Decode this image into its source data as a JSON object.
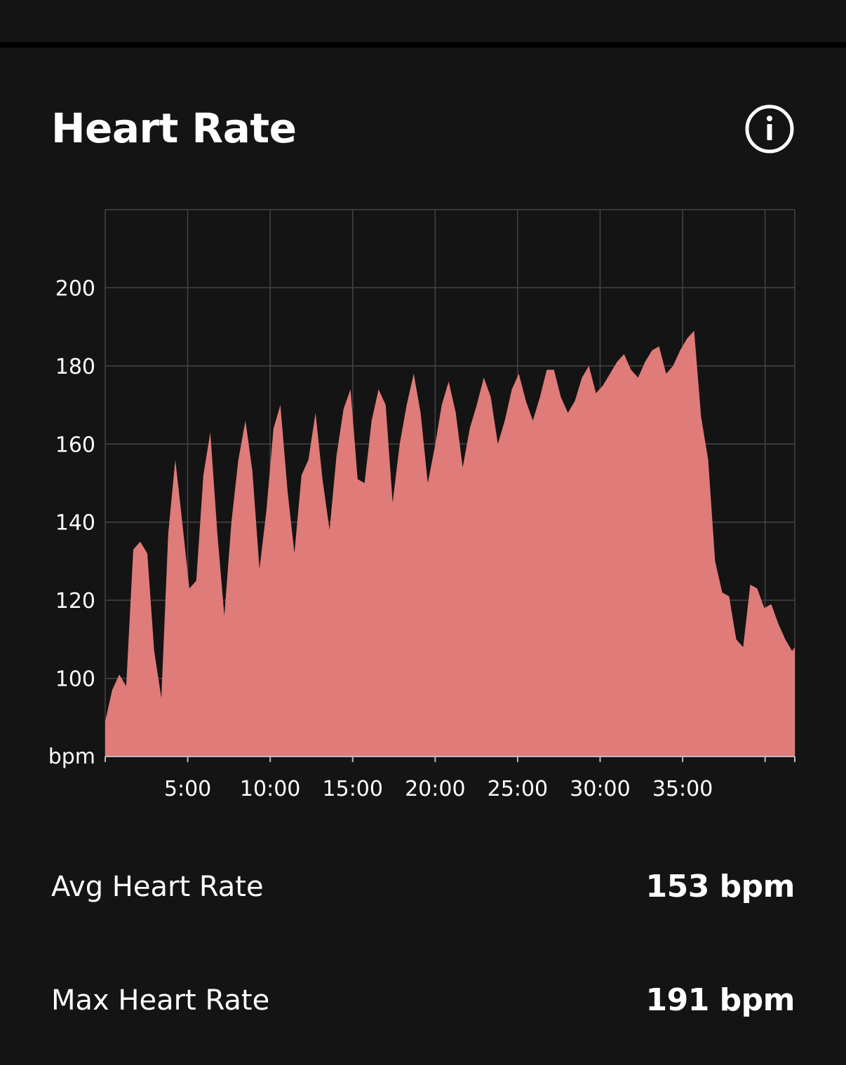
{
  "header": {
    "title": "Heart Rate",
    "info_icon": "info-icon"
  },
  "chart_data": {
    "type": "area",
    "title": "",
    "xlabel": "",
    "ylabel": "bpm",
    "color": "#df7b79",
    "grid": true,
    "xlim": [
      0,
      41.8
    ],
    "ylim": [
      80,
      220
    ],
    "y_ticks": [
      100,
      120,
      140,
      160,
      180,
      200
    ],
    "x_ticks": [
      5,
      10,
      15,
      20,
      25,
      30,
      35
    ],
    "x_tick_labels": [
      "5:00",
      "10:00",
      "15:00",
      "20:00",
      "25:00",
      "30:00",
      "35:00"
    ],
    "x_gridlines": [
      5,
      10,
      15,
      20,
      25,
      30,
      35,
      40
    ],
    "x": [
      0,
      0.42,
      0.85,
      1.27,
      1.7,
      2.12,
      2.55,
      2.97,
      3.4,
      3.82,
      4.25,
      4.67,
      5.1,
      5.52,
      5.95,
      6.37,
      6.8,
      7.22,
      7.65,
      8.07,
      8.5,
      8.92,
      9.35,
      9.77,
      10.2,
      10.62,
      11.05,
      11.47,
      11.9,
      12.32,
      12.75,
      13.17,
      13.6,
      14.02,
      14.45,
      14.87,
      15.3,
      15.72,
      16.15,
      16.57,
      17.0,
      17.42,
      17.85,
      18.27,
      18.7,
      19.12,
      19.55,
      19.97,
      20.4,
      20.82,
      21.25,
      21.67,
      22.1,
      22.52,
      22.95,
      23.37,
      23.8,
      24.22,
      24.65,
      25.07,
      25.5,
      25.92,
      26.35,
      26.77,
      27.2,
      27.62,
      28.05,
      28.47,
      28.9,
      29.32,
      29.75,
      30.17,
      30.6,
      31.02,
      31.45,
      31.87,
      32.3,
      32.72,
      33.15,
      33.57,
      34.0,
      34.42,
      34.85,
      35.27,
      35.7,
      36.12,
      36.55,
      36.97,
      37.4,
      37.82,
      38.25,
      38.67,
      39.1,
      39.52,
      39.95,
      40.37,
      40.8,
      41.22,
      41.64,
      41.8
    ],
    "y": [
      89,
      97,
      101,
      98,
      133,
      135,
      132,
      107,
      95,
      137,
      156,
      140,
      123,
      125,
      152,
      163,
      137,
      116,
      140,
      156,
      166,
      153,
      128,
      143,
      164,
      170,
      148,
      132,
      152,
      156,
      168,
      151,
      138,
      157,
      169,
      174,
      151,
      150,
      166,
      174,
      170,
      145,
      160,
      170,
      178,
      168,
      150,
      159,
      170,
      176,
      168,
      154,
      164,
      170,
      177,
      172,
      160,
      166,
      174,
      178,
      171,
      166,
      172,
      179,
      179,
      172,
      168,
      171,
      177,
      180,
      173,
      175,
      178,
      181,
      183,
      179,
      177,
      181,
      184,
      185,
      178,
      180,
      184,
      187,
      189,
      167,
      156,
      130,
      122,
      121,
      110,
      108,
      124,
      123,
      118,
      119,
      114,
      110,
      107,
      108
    ]
  },
  "stats": {
    "avg_label": "Avg Heart Rate",
    "avg_value": "153 bpm",
    "max_label": "Max Heart Rate",
    "max_value": "191 bpm"
  }
}
